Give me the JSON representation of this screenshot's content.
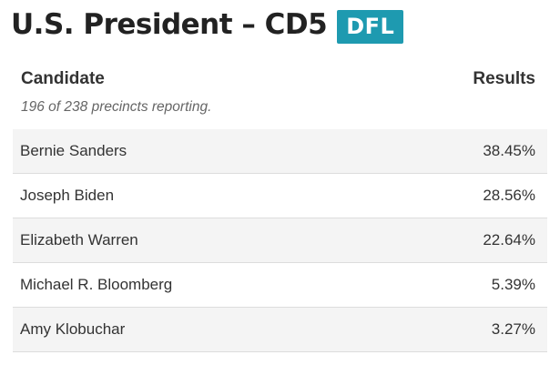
{
  "header": {
    "title": "U.S. President – CD5",
    "party_badge": "DFL",
    "badge_color": "#1e9ab0"
  },
  "table": {
    "columns": {
      "candidate": "Candidate",
      "results": "Results"
    },
    "reporting": "196 of 238 precincts reporting.",
    "rows": [
      {
        "name": "Bernie Sanders",
        "result": "38.45%"
      },
      {
        "name": "Joseph Biden",
        "result": "28.56%"
      },
      {
        "name": "Elizabeth Warren",
        "result": "22.64%"
      },
      {
        "name": "Michael R. Bloomberg",
        "result": "5.39%"
      },
      {
        "name": "Amy Klobuchar",
        "result": "3.27%"
      }
    ]
  }
}
